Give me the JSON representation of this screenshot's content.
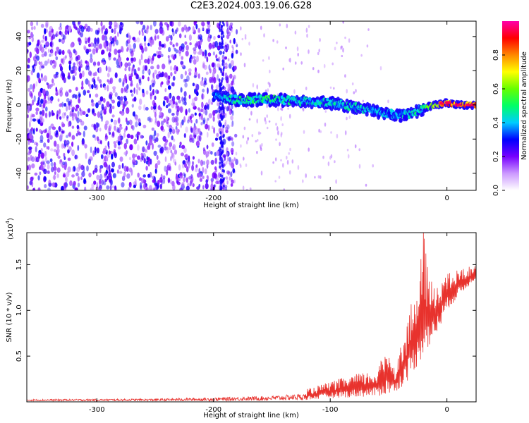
{
  "title": "C2E3.2024.003.19.06.G28",
  "chart_data": [
    {
      "type": "heatmap",
      "xlabel": "Height of straight line (km)",
      "ylabel": "Frequency (Hz)",
      "xlim": [
        -360,
        25
      ],
      "ylim": [
        -50,
        49
      ],
      "xticks": [
        -300,
        -200,
        -100,
        0
      ],
      "yticks": [
        -40,
        -20,
        0,
        20,
        40
      ],
      "colorbar": {
        "label": "Normalized spectral amplitude",
        "range": [
          0,
          1
        ],
        "ticks": [
          "0.0",
          "0.2",
          "0.4",
          "0.6",
          "0.8"
        ],
        "colors": [
          "#ffffff",
          "#cc99ff",
          "#7700ff",
          "#0000ff",
          "#00ccff",
          "#00ff66",
          "#66ff00",
          "#ffff00",
          "#ff8800",
          "#ff0000",
          "#ff00aa"
        ]
      },
      "ridge": {
        "x": [
          -200,
          -180,
          -150,
          -120,
          -100,
          -80,
          -60,
          -40,
          -30,
          -20,
          -10,
          0,
          10,
          25
        ],
        "frequency": [
          5,
          3,
          3,
          2,
          1,
          -1,
          -4,
          -6,
          -5,
          -2,
          0,
          1,
          0,
          0
        ],
        "amplitude": [
          0.35,
          0.5,
          0.5,
          0.45,
          0.45,
          0.45,
          0.4,
          0.4,
          0.45,
          0.5,
          0.7,
          0.9,
          0.9,
          0.85
        ]
      },
      "noise_region": {
        "x": [
          -360,
          -180
        ],
        "amplitude": [
          0.1,
          0.3
        ]
      }
    },
    {
      "type": "line",
      "xlabel": "Height of straight line (km)",
      "ylabel": "SNR (10 * v/v)",
      "y_multiplier": "(x10",
      "y_multiplier_exp": "4",
      "xlim": [
        -360,
        25
      ],
      "ylim": [
        0,
        18500
      ],
      "xticks": [
        -300,
        -200,
        -100,
        0
      ],
      "yticks": [
        5000,
        10000,
        15000
      ],
      "ytick_labels": [
        "0.5",
        "1.0",
        "1.5"
      ],
      "color": "#e8322d",
      "envelope": {
        "x": [
          -360,
          -250,
          -200,
          -150,
          -120,
          -100,
          -80,
          -60,
          -50,
          -45,
          -40,
          -35,
          -30,
          -25,
          -20,
          -15,
          -10,
          -5,
          0,
          10,
          25
        ],
        "low": [
          100,
          100,
          100,
          150,
          200,
          400,
          500,
          600,
          800,
          1000,
          1500,
          2000,
          3000,
          4000,
          5000,
          6000,
          7000,
          8500,
          10000,
          11500,
          13500
        ],
        "high": [
          400,
          500,
          700,
          1000,
          1400,
          2200,
          3000,
          3500,
          6500,
          3800,
          6000,
          8500,
          11000,
          12500,
          18500,
          13500,
          13000,
          14000,
          14000,
          14500,
          15000
        ]
      }
    }
  ]
}
